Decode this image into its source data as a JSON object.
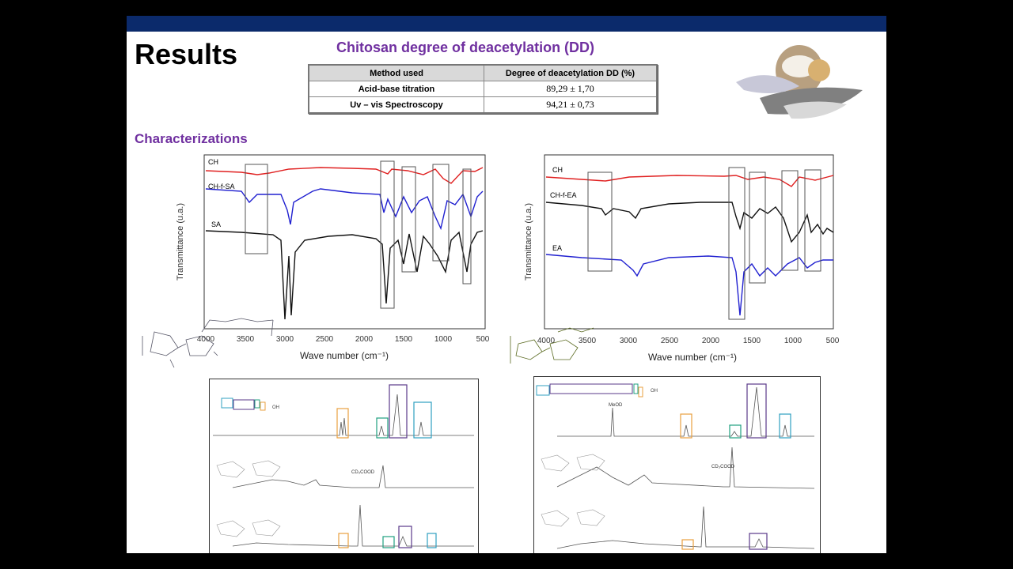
{
  "slide": {
    "title": "Results",
    "subtitle": "Chitosan degree of deacetylation (DD)",
    "section_heading": "Characterizations"
  },
  "dd_table": {
    "headers": [
      "Method used",
      "Degree of deacetylation DD (%)"
    ],
    "rows": [
      {
        "method": "Acid-base titration",
        "value": "89,29 ± 1,70"
      },
      {
        "method": "Uv – vis Spectroscopy",
        "value": "94,21 ± 0,73"
      }
    ]
  },
  "ftir_left": {
    "ylabel": "Transmittance (u.a.)",
    "xlabel": "Wave number (cm⁻¹)",
    "ticks": [
      "4000",
      "3500",
      "3000",
      "2500",
      "2000",
      "1500",
      "1000",
      "500"
    ],
    "series": [
      {
        "name": "CH",
        "color": "#e02020"
      },
      {
        "name": "CH-f-SA",
        "color": "#2020d0"
      },
      {
        "name": "SA",
        "color": "#111111"
      }
    ]
  },
  "ftir_right": {
    "ylabel": "Transmittance (u.a.)",
    "xlabel": "Wave number (cm⁻¹)",
    "ticks": [
      "4000",
      "3500",
      "3000",
      "2500",
      "2000",
      "1500",
      "1000",
      "500"
    ],
    "series": [
      {
        "name": "CH",
        "color": "#e02020"
      },
      {
        "name": "CH-f-EA",
        "color": "#111111"
      },
      {
        "name": "EA",
        "color": "#2020d0"
      }
    ]
  },
  "nmr_left": {
    "solvent_label": "CD₃COOD",
    "acid_label": "OH"
  },
  "nmr_right": {
    "solvent_label_top": "MeOD",
    "solvent_label": "CD₃COOD",
    "acid_label": "OH"
  },
  "colors": {
    "topbar": "#0b2a6b",
    "heading": "#7030a0",
    "box_orange": "#e8a040",
    "box_green": "#20a080",
    "box_purple": "#5a3a8a",
    "box_cyan": "#30a0c0"
  }
}
